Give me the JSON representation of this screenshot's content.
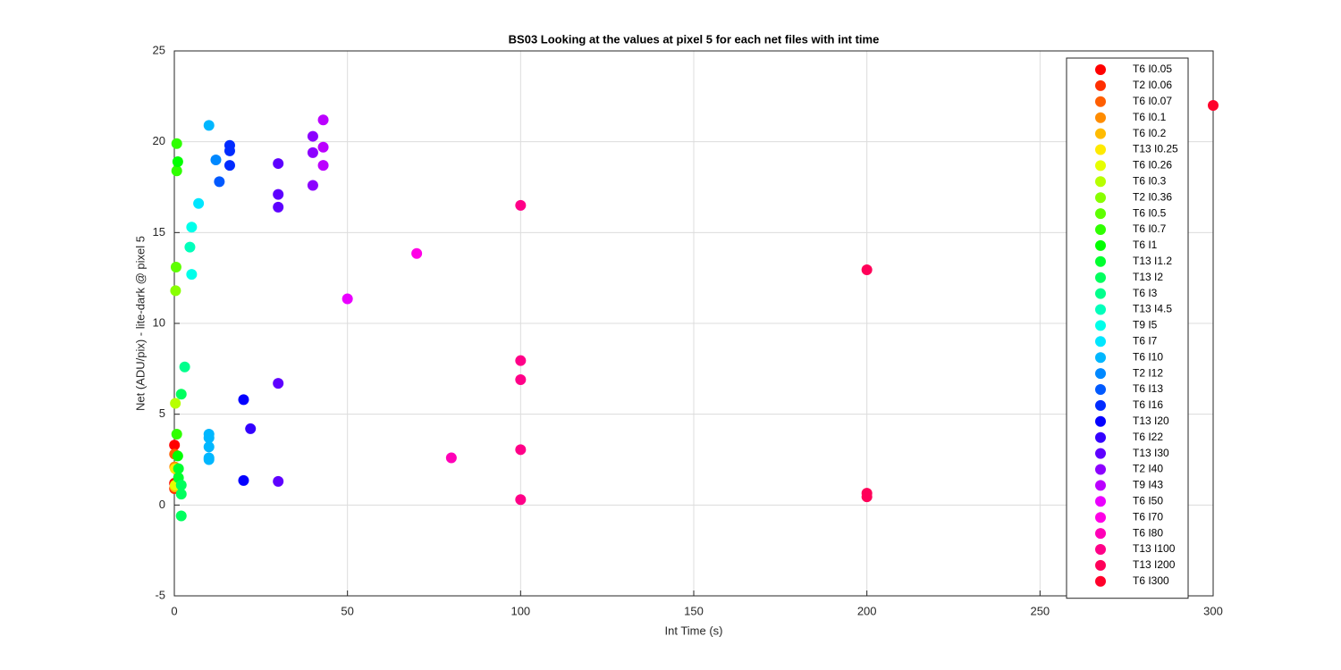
{
  "chart_data": {
    "type": "scatter",
    "title": "BS03  Looking at the values at pixel 5 for each net files with int time",
    "x_label": "Int Time (s)",
    "y_label": "Net (ADU/pix) - lite-dark @ pixel 5",
    "xlim": [
      0,
      300
    ],
    "xticks": [
      0,
      50,
      100,
      150,
      200,
      250,
      300
    ],
    "ylim": [
      -5,
      25
    ],
    "yticks": [
      -5,
      0,
      5,
      10,
      15,
      20,
      25
    ],
    "grid": true,
    "legend": "northeast",
    "series": [
      {
        "name": "T6 I0.05",
        "color": "#ff0000",
        "x": [
          0.05,
          0.05
        ],
        "values": [
          3.3,
          1.2
        ]
      },
      {
        "name": "T2 I0.06",
        "color": "#ff2f00",
        "x": [
          0.06
        ],
        "values": [
          0.9
        ]
      },
      {
        "name": "T6 I0.07",
        "color": "#ff5e00",
        "x": [
          0.07
        ],
        "values": [
          2.8
        ]
      },
      {
        "name": "T6 I0.1",
        "color": "#ff8c00",
        "x": [
          0.1
        ],
        "values": [
          2.1
        ]
      },
      {
        "name": "T6 I0.2",
        "color": "#ffbb00",
        "x": [
          0.2
        ],
        "values": [
          1.0
        ]
      },
      {
        "name": "T13 I0.25",
        "color": "#ffea00",
        "x": [
          0.25
        ],
        "values": [
          2.0
        ]
      },
      {
        "name": "T6 I0.26",
        "color": "#e6ff00",
        "x": [
          0.26
        ],
        "values": [
          1.1
        ]
      },
      {
        "name": "T6 I0.3",
        "color": "#b7ff00",
        "x": [
          0.3
        ],
        "values": [
          5.6
        ]
      },
      {
        "name": "T2 I0.36",
        "color": "#88ff00",
        "x": [
          0.36
        ],
        "values": [
          11.8
        ]
      },
      {
        "name": "T6 I0.5",
        "color": "#5eff00",
        "x": [
          0.5
        ],
        "values": [
          13.1
        ]
      },
      {
        "name": "T6 I0.7",
        "color": "#2fff00",
        "x": [
          0.7,
          0.7,
          0.7
        ],
        "values": [
          19.9,
          18.4,
          3.9
        ]
      },
      {
        "name": "T6 I1",
        "color": "#00ff00",
        "x": [
          1,
          1
        ],
        "values": [
          18.9,
          2.7
        ]
      },
      {
        "name": "T13 I1.2",
        "color": "#00ff2f",
        "x": [
          1.2,
          1.2
        ],
        "values": [
          2.0,
          1.5
        ]
      },
      {
        "name": "T13 I2",
        "color": "#00ff5e",
        "x": [
          2,
          2,
          2,
          2
        ],
        "values": [
          6.1,
          1.1,
          0.6,
          -0.6
        ]
      },
      {
        "name": "T6 I3",
        "color": "#00ff8c",
        "x": [
          3
        ],
        "values": [
          7.6
        ]
      },
      {
        "name": "T13 I4.5",
        "color": "#00ffbb",
        "x": [
          4.5
        ],
        "values": [
          14.2
        ]
      },
      {
        "name": "T9 I5",
        "color": "#00ffea",
        "x": [
          5,
          5
        ],
        "values": [
          15.3,
          12.7
        ]
      },
      {
        "name": "T6 I7",
        "color": "#00e6ff",
        "x": [
          7
        ],
        "values": [
          16.6
        ]
      },
      {
        "name": "T6 I10",
        "color": "#00b7ff",
        "x": [
          10,
          10,
          10,
          10,
          10,
          10
        ],
        "values": [
          20.9,
          3.9,
          3.7,
          3.2,
          2.6,
          2.5
        ]
      },
      {
        "name": "T2 I12",
        "color": "#0088ff",
        "x": [
          12
        ],
        "values": [
          19.0
        ]
      },
      {
        "name": "T6 I13",
        "color": "#0059ff",
        "x": [
          13
        ],
        "values": [
          17.8
        ]
      },
      {
        "name": "T6 I16",
        "color": "#002bff",
        "x": [
          16,
          16,
          16
        ],
        "values": [
          19.8,
          19.5,
          18.7
        ]
      },
      {
        "name": "T13 I20",
        "color": "#0400ff",
        "x": [
          20,
          20
        ],
        "values": [
          5.8,
          1.35
        ]
      },
      {
        "name": "T6 I22",
        "color": "#3300ff",
        "x": [
          22
        ],
        "values": [
          4.2
        ]
      },
      {
        "name": "T13 I30",
        "color": "#5e00ff",
        "x": [
          30,
          30,
          30,
          30,
          30
        ],
        "values": [
          18.8,
          17.1,
          16.4,
          6.7,
          1.3
        ]
      },
      {
        "name": "T2 I40",
        "color": "#8c00ff",
        "x": [
          40,
          40,
          40
        ],
        "values": [
          20.3,
          19.4,
          17.6
        ]
      },
      {
        "name": "T9 I43",
        "color": "#bb00ff",
        "x": [
          43,
          43,
          43
        ],
        "values": [
          21.2,
          19.7,
          18.7
        ]
      },
      {
        "name": "T6 I50",
        "color": "#ea00ff",
        "x": [
          50
        ],
        "values": [
          11.35
        ]
      },
      {
        "name": "T6 I70",
        "color": "#ff00e6",
        "x": [
          70
        ],
        "values": [
          13.85
        ]
      },
      {
        "name": "T6 I80",
        "color": "#ff00b7",
        "x": [
          80
        ],
        "values": [
          2.6
        ]
      },
      {
        "name": "T13 I100",
        "color": "#ff0088",
        "x": [
          100,
          100,
          100,
          100,
          100
        ],
        "values": [
          16.5,
          7.95,
          6.9,
          3.05,
          0.3
        ]
      },
      {
        "name": "T13 I200",
        "color": "#ff0059",
        "x": [
          200,
          200,
          200
        ],
        "values": [
          12.95,
          0.65,
          0.45
        ]
      },
      {
        "name": "T6 I300",
        "color": "#ff002a",
        "x": [
          300
        ],
        "values": [
          22.0
        ]
      }
    ]
  }
}
